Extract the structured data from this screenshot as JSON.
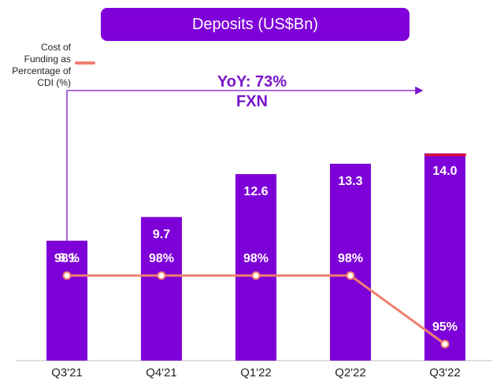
{
  "colors": {
    "bar": "#7e00d8",
    "line": "#ef7f6e",
    "accent_red": "#e0102c",
    "banner": "#7f00d9",
    "yoy_text": "#7a14c9"
  },
  "annotation": {
    "line1": "YoY: 73%",
    "line2": "FXN"
  },
  "chart_data": {
    "type": "bar",
    "title": "Deposits (US$Bn)",
    "categories": [
      "Q3'21",
      "Q4'21",
      "Q1'22",
      "Q2'22",
      "Q3'22"
    ],
    "series": [
      {
        "values": [
          8.1,
          9.7,
          12.6,
          13.3,
          14.0
        ],
        "labels": [
          "8.1",
          "9.7",
          "12.6",
          "13.3",
          "14.0"
        ]
      },
      {
        "name": "Cost of Funding as Percentage of CDI (%)",
        "type": "line",
        "values": [
          98,
          98,
          98,
          98,
          95
        ],
        "labels": [
          "98%",
          "98%",
          "98%",
          "98%",
          "95%"
        ]
      }
    ],
    "legend": "top-left",
    "grid": false
  }
}
